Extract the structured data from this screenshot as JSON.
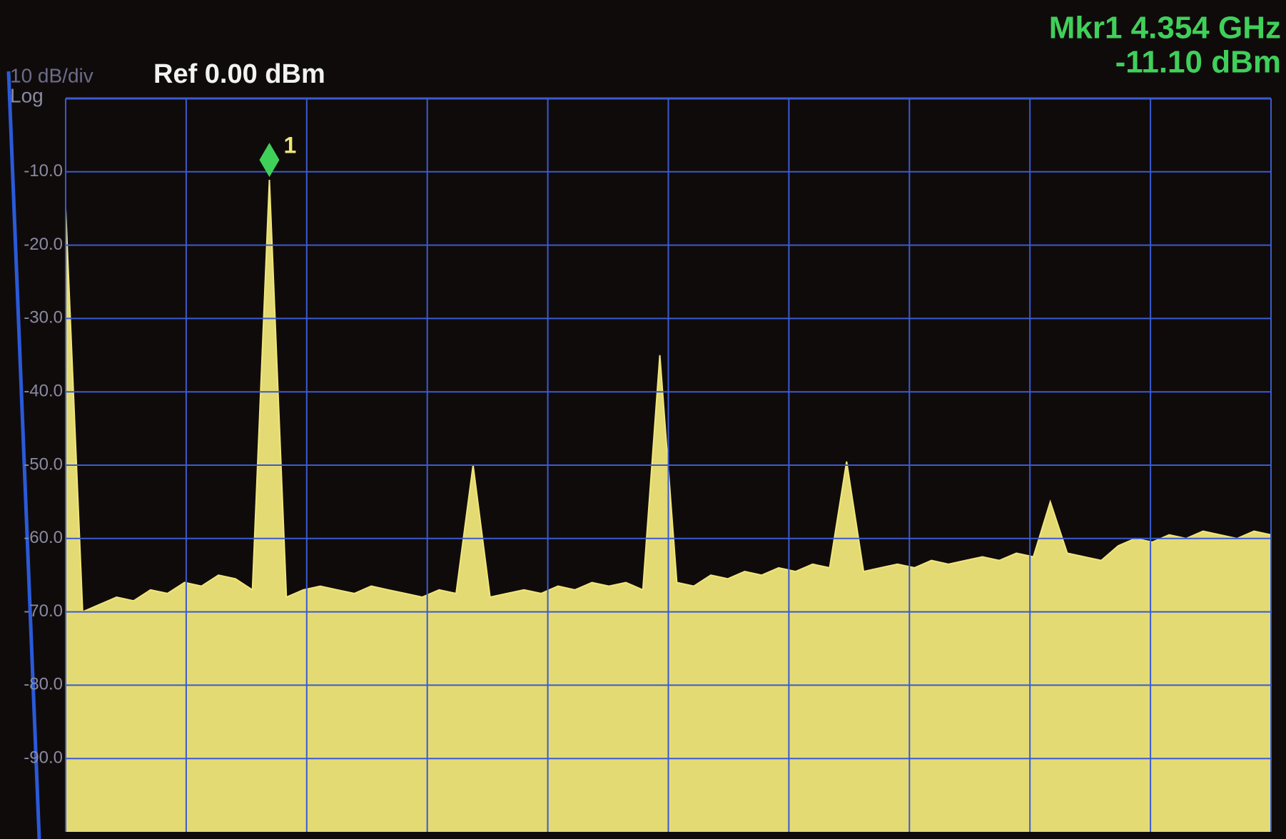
{
  "header": {
    "scale": "10 dB/div",
    "scale_type": "Log",
    "reference": "Ref 0.00 dBm"
  },
  "marker": {
    "frequency": "Mkr1 4.354 GHz",
    "level": "-11.10 dBm",
    "number": "1"
  },
  "chart_data": {
    "type": "area",
    "color": "#f0e67a",
    "marker_color": "#3fd05a",
    "grid": true,
    "ylim": [
      -100,
      0
    ],
    "yticks": [
      {
        "value": -10,
        "label": "-10.0"
      },
      {
        "value": -20,
        "label": "-20.0"
      },
      {
        "value": -30,
        "label": "-30.0"
      },
      {
        "value": -40,
        "label": "-40.0"
      },
      {
        "value": -50,
        "label": "-50.0"
      },
      {
        "value": -60,
        "label": "-60.0"
      },
      {
        "value": -70,
        "label": "-70.0"
      },
      {
        "value": -80,
        "label": "-80.0"
      },
      {
        "value": -90,
        "label": "-90.0"
      }
    ],
    "marker_index": 12,
    "values": [
      -15,
      -70,
      -69,
      -68,
      -68.5,
      -67,
      -67.5,
      -66,
      -66.5,
      -65,
      -65.5,
      -67,
      -11.1,
      -68,
      -67,
      -66.5,
      -67,
      -67.5,
      -66.5,
      -67,
      -67.5,
      -68,
      -67,
      -67.5,
      -50,
      -68,
      -67.5,
      -67,
      -67.5,
      -66.5,
      -67,
      -66,
      -66.5,
      -66,
      -67,
      -35,
      -66,
      -66.5,
      -65,
      -65.5,
      -64.5,
      -65,
      -64,
      -64.5,
      -63.5,
      -64,
      -49.5,
      -64.5,
      -64,
      -63.5,
      -64,
      -63,
      -63.5,
      -63,
      -62.5,
      -63,
      -62,
      -62.5,
      -55,
      -62,
      -62.5,
      -63,
      -61,
      -60,
      -60.5,
      -59.5,
      -60,
      -59,
      -59.5,
      -60,
      -59,
      -59.5
    ]
  }
}
